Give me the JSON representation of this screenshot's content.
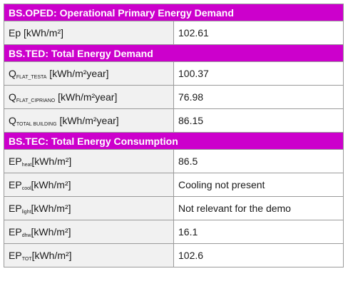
{
  "colors": {
    "header_bg": "#cc00cc",
    "label_bg": "#f1f1f1"
  },
  "sections": [
    {
      "title": "BS.OPED: Operational Primary Energy Demand",
      "rows": [
        {
          "label": "Ep",
          "sub": "",
          "unit": " [kWh/m²]",
          "value": "102.61"
        }
      ]
    },
    {
      "title": "BS.TED: Total Energy Demand",
      "rows": [
        {
          "label": "Q",
          "sub": "FLAT_TESTA",
          "unit": " [kWh/m²year]",
          "value": "100.37"
        },
        {
          "label": "Q",
          "sub": "FLAT_CIPRIANO",
          "unit": " [kWh/m²year]",
          "value": "76.98"
        },
        {
          "label": "Q",
          "sub": "TOTAL BUILDING",
          "unit": " [kWh/m²year]",
          "value": "86.15"
        }
      ]
    },
    {
      "title": "BS.TEC: Total Energy Consumption",
      "rows": [
        {
          "label": "EP",
          "sub": "heat",
          "unit": "[kWh/m²]",
          "value": "86.5"
        },
        {
          "label": "EP",
          "sub": "cool",
          "unit": "[kWh/m²]",
          "value": "Cooling not present"
        },
        {
          "label": "EP",
          "sub": "light",
          "unit": "[kWh/m²]",
          "value": "Not relevant for the demo"
        },
        {
          "label": "EP",
          "sub": "dhw",
          "unit": "[kWh/m²]",
          "value": "16.1"
        },
        {
          "label": "EP",
          "sub": "TOT",
          "unit": "[kWh/m²]",
          "value": "102.6"
        }
      ]
    }
  ]
}
